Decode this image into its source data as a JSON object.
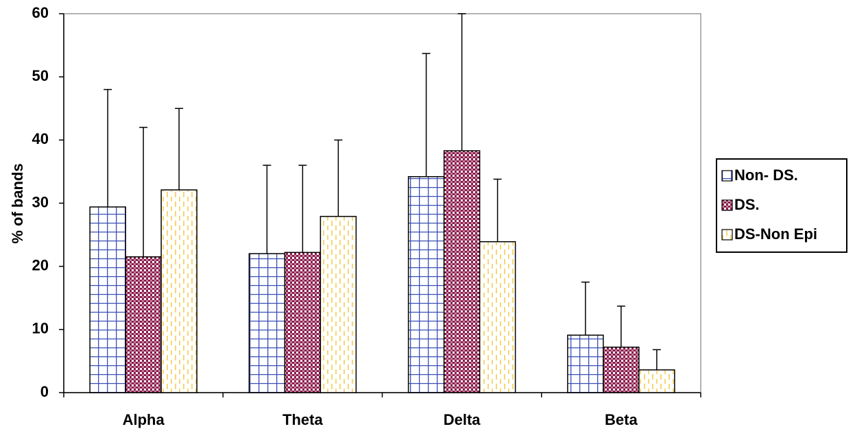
{
  "chart_data": {
    "type": "bar",
    "y_label": "% of bands",
    "categories": [
      "Alpha",
      "Theta",
      "Delta",
      "Beta"
    ],
    "series": [
      {
        "name": "Non- DS.",
        "color": "#3a4fb5",
        "pattern": "grid",
        "values": [
          29.4,
          22,
          34.2,
          9.1
        ],
        "errors": [
          18.6,
          14,
          19.5,
          8.4
        ]
      },
      {
        "name": "DS.",
        "color": "#8b1a4a",
        "pattern": "checker",
        "values": [
          21.5,
          22.2,
          38.3,
          7.2
        ],
        "errors": [
          20.5,
          13.8,
          21.7,
          6.5
        ]
      },
      {
        "name": "DS-Non Epi",
        "color": "#f0c83a",
        "pattern": "dashes",
        "values": [
          32.1,
          27.9,
          23.9,
          3.6
        ],
        "errors": [
          12.9,
          12.1,
          9.9,
          3.2
        ]
      }
    ],
    "ylim": [
      0,
      60
    ],
    "yticks": [
      0,
      10,
      20,
      30,
      40,
      50,
      60
    ],
    "legend": "right"
  }
}
